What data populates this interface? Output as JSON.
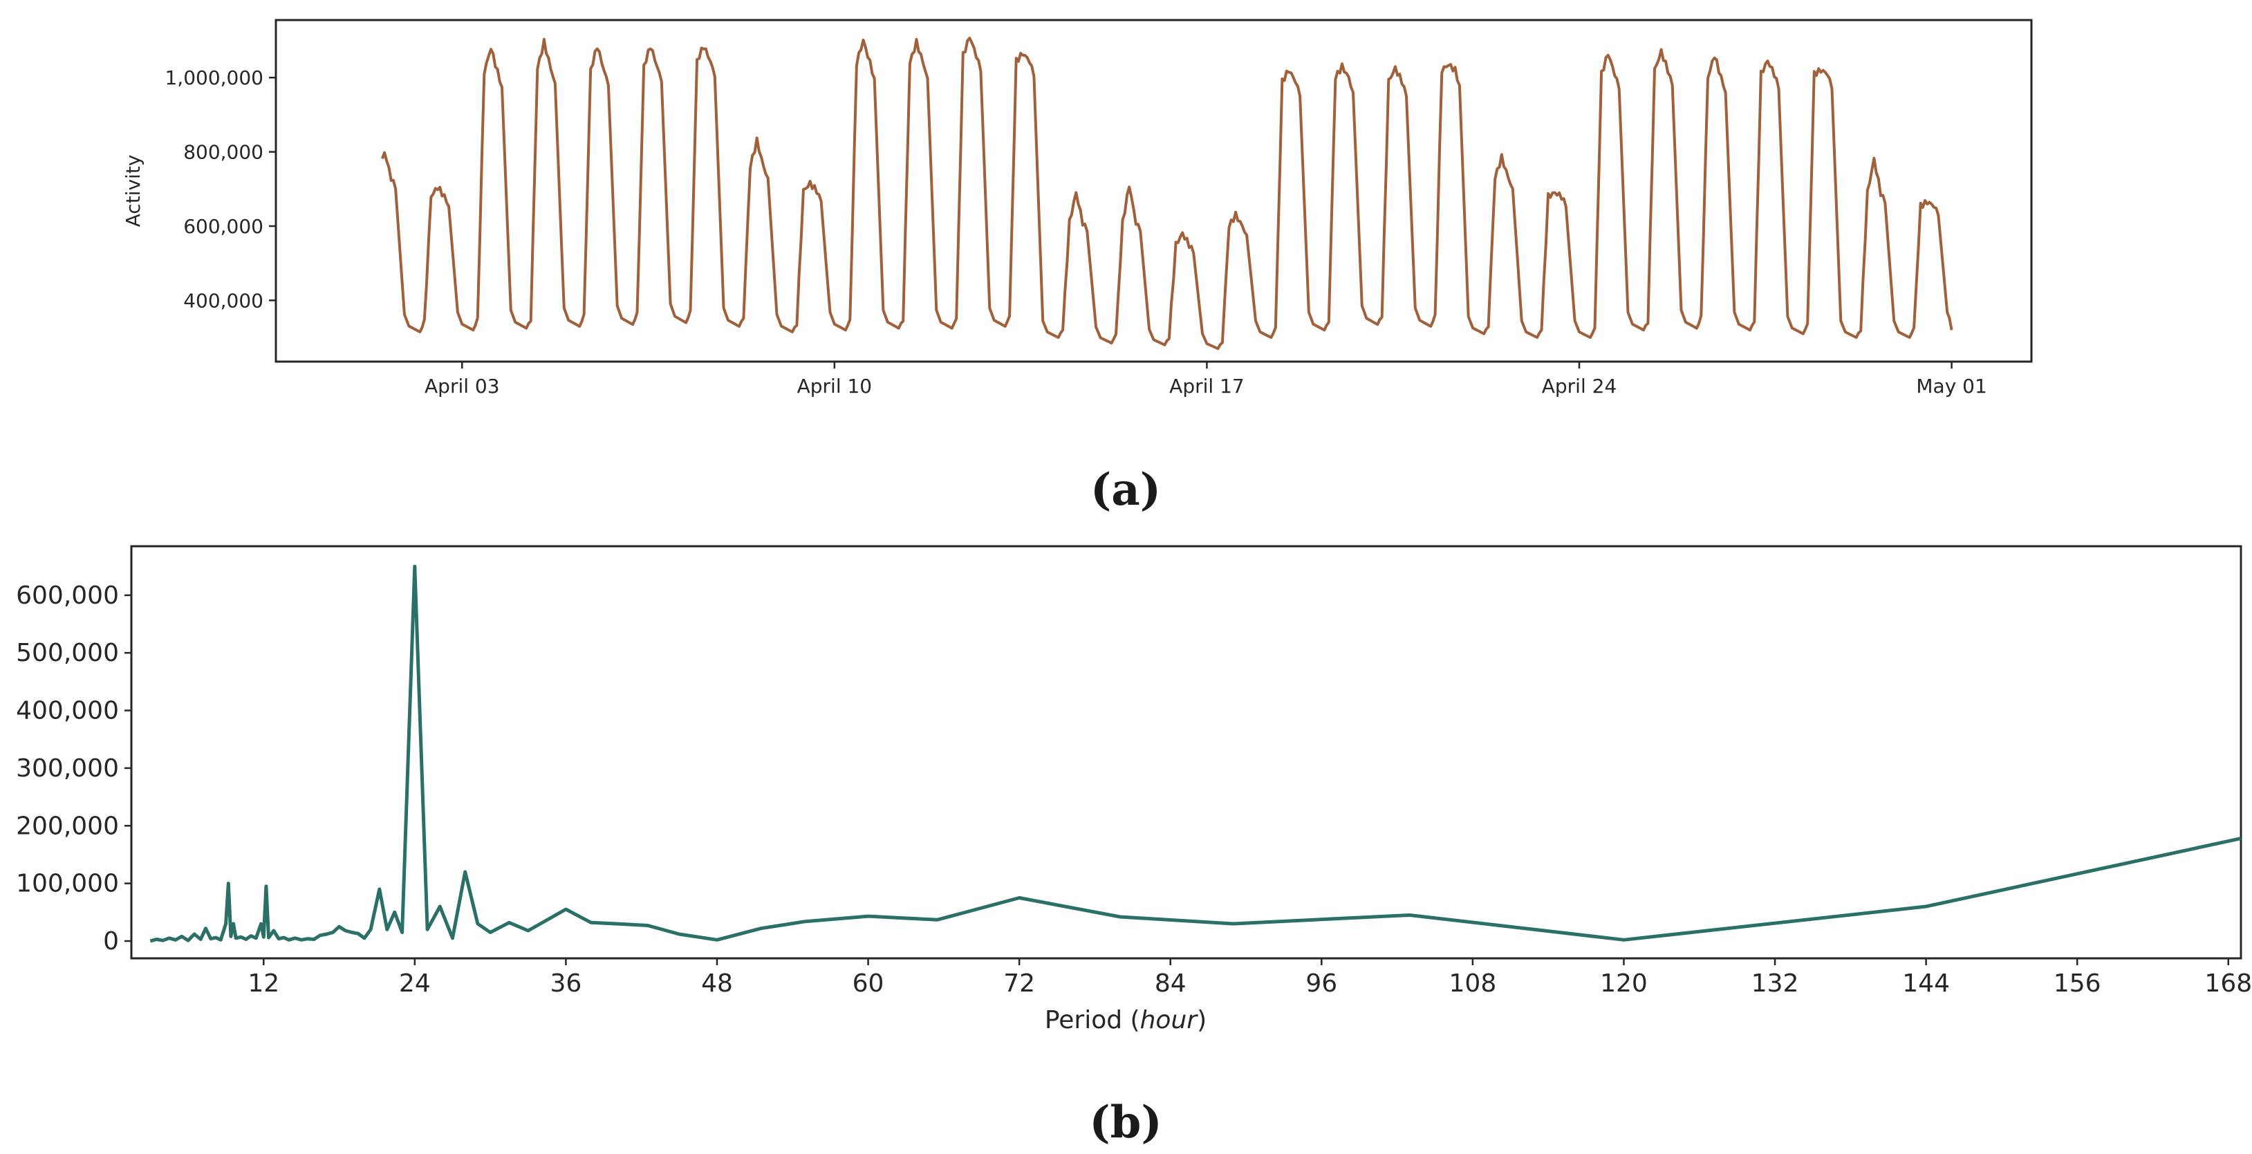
{
  "panels": {
    "a_label": "(a)",
    "b_label": "(b)"
  },
  "chart_data": [
    {
      "type": "line",
      "ylabel": "Activity",
      "xlabel": "",
      "color": "#a0603a",
      "x_start": "2018-04-01T12:00",
      "x_end": "2018-05-01T00:00",
      "xlim": [
        "2018-03-30T12:00",
        "2018-05-02T12:00"
      ],
      "ylim": [
        235000,
        1155000
      ],
      "yticks": [
        400000,
        600000,
        800000,
        1000000
      ],
      "ytick_labels": [
        "400,000",
        "600,000",
        "800,000",
        "1,000,000"
      ],
      "xticks": [
        "2018-04-03",
        "2018-04-10",
        "2018-04-17",
        "2018-04-24",
        "2018-05-01"
      ],
      "xtick_labels": [
        "April 03",
        "April 10",
        "April 17",
        "April 24",
        "May 01"
      ],
      "grid": false,
      "daily_profile": [
        {
          "day": "2018-04-01",
          "peak": 800000,
          "shoulder": 730000,
          "low": 325000
        },
        {
          "day": "2018-04-02",
          "peak": 705000,
          "shoulder": 680000,
          "low": 315000
        },
        {
          "day": "2018-04-03",
          "peak": 1080000,
          "shoulder": 1015000,
          "low": 320000
        },
        {
          "day": "2018-04-04",
          "peak": 1095000,
          "shoulder": 1025000,
          "low": 325000
        },
        {
          "day": "2018-04-05",
          "peak": 1085000,
          "shoulder": 1020000,
          "low": 330000
        },
        {
          "day": "2018-04-06",
          "peak": 1085000,
          "shoulder": 1030000,
          "low": 335000
        },
        {
          "day": "2018-04-07",
          "peak": 1085000,
          "shoulder": 1045000,
          "low": 340000
        },
        {
          "day": "2018-04-08",
          "peak": 830000,
          "shoulder": 760000,
          "low": 330000
        },
        {
          "day": "2018-04-09",
          "peak": 715000,
          "shoulder": 695000,
          "low": 315000
        },
        {
          "day": "2018-04-10",
          "peak": 1100000,
          "shoulder": 1040000,
          "low": 320000
        },
        {
          "day": "2018-04-11",
          "peak": 1095000,
          "shoulder": 1040000,
          "low": 325000
        },
        {
          "day": "2018-04-12",
          "peak": 1110000,
          "shoulder": 1060000,
          "low": 325000
        },
        {
          "day": "2018-04-13",
          "peak": 1065000,
          "shoulder": 1045000,
          "low": 330000
        },
        {
          "day": "2018-04-14",
          "peak": 690000,
          "shoulder": 610000,
          "low": 300000
        },
        {
          "day": "2018-04-15",
          "peak": 710000,
          "shoulder": 610000,
          "low": 285000
        },
        {
          "day": "2018-04-16",
          "peak": 580000,
          "shoulder": 550000,
          "low": 280000
        },
        {
          "day": "2018-04-17",
          "peak": 630000,
          "shoulder": 600000,
          "low": 270000
        },
        {
          "day": "2018-04-18",
          "peak": 1020000,
          "shoulder": 990000,
          "low": 300000
        },
        {
          "day": "2018-04-19",
          "peak": 1030000,
          "shoulder": 1000000,
          "low": 320000
        },
        {
          "day": "2018-04-20",
          "peak": 1025000,
          "shoulder": 990000,
          "low": 335000
        },
        {
          "day": "2018-04-21",
          "peak": 1035000,
          "shoulder": 1020000,
          "low": 330000
        },
        {
          "day": "2018-04-22",
          "peak": 785000,
          "shoulder": 730000,
          "low": 310000
        },
        {
          "day": "2018-04-23",
          "peak": 690000,
          "shoulder": 680000,
          "low": 300000
        },
        {
          "day": "2018-04-24",
          "peak": 1065000,
          "shoulder": 1010000,
          "low": 300000
        },
        {
          "day": "2018-04-25",
          "peak": 1070000,
          "shoulder": 1020000,
          "low": 320000
        },
        {
          "day": "2018-04-26",
          "peak": 1060000,
          "shoulder": 1000000,
          "low": 325000
        },
        {
          "day": "2018-04-27",
          "peak": 1045000,
          "shoulder": 1010000,
          "low": 320000
        },
        {
          "day": "2018-04-28",
          "peak": 1020000,
          "shoulder": 1010000,
          "low": 310000
        },
        {
          "day": "2018-04-29",
          "peak": 780000,
          "shoulder": 690000,
          "low": 300000
        },
        {
          "day": "2018-04-30",
          "peak": 665000,
          "shoulder": 655000,
          "low": 300000
        }
      ],
      "end_value": 320000
    },
    {
      "type": "line",
      "xlabel": "Period (hour)",
      "ylabel": "",
      "color": "#2a7066",
      "xlim": [
        1.5,
        169
      ],
      "ylim": [
        -30000,
        685000
      ],
      "xticks": [
        12,
        24,
        36,
        48,
        60,
        72,
        84,
        96,
        108,
        120,
        132,
        144,
        156,
        168
      ],
      "yticks": [
        0,
        100000,
        200000,
        300000,
        400000,
        500000,
        600000
      ],
      "ytick_labels": [
        "0",
        "100,000",
        "200,000",
        "300,000",
        "400,000",
        "500,000",
        "600,000"
      ],
      "grid": false,
      "points": [
        [
          3,
          0
        ],
        [
          3.5,
          3000
        ],
        [
          4,
          1000
        ],
        [
          4.5,
          5000
        ],
        [
          5,
          2000
        ],
        [
          5.5,
          8000
        ],
        [
          6,
          1000
        ],
        [
          6.5,
          12000
        ],
        [
          7,
          3000
        ],
        [
          7.4,
          22000
        ],
        [
          7.8,
          4000
        ],
        [
          8.2,
          6000
        ],
        [
          8.6,
          2000
        ],
        [
          9.0,
          30000
        ],
        [
          9.2,
          100000
        ],
        [
          9.4,
          8000
        ],
        [
          9.6,
          30000
        ],
        [
          9.8,
          5000
        ],
        [
          10.2,
          7000
        ],
        [
          10.6,
          3000
        ],
        [
          11.0,
          9000
        ],
        [
          11.4,
          5000
        ],
        [
          11.8,
          30000
        ],
        [
          12.0,
          7000
        ],
        [
          12.2,
          95000
        ],
        [
          12.4,
          6000
        ],
        [
          12.8,
          18000
        ],
        [
          13.2,
          4000
        ],
        [
          13.6,
          6000
        ],
        [
          14.0,
          2000
        ],
        [
          14.5,
          5000
        ],
        [
          15,
          2000
        ],
        [
          15.5,
          4000
        ],
        [
          16,
          3000
        ],
        [
          16.5,
          10000
        ],
        [
          17,
          12000
        ],
        [
          17.5,
          15000
        ],
        [
          18,
          25000
        ],
        [
          18.5,
          18000
        ],
        [
          19,
          15000
        ],
        [
          19.5,
          13000
        ],
        [
          20,
          5000
        ],
        [
          20.5,
          20000
        ],
        [
          21.2,
          90000
        ],
        [
          21.8,
          20000
        ],
        [
          22.4,
          50000
        ],
        [
          23.0,
          15000
        ],
        [
          24,
          650000
        ],
        [
          25,
          20000
        ],
        [
          26,
          60000
        ],
        [
          27,
          5000
        ],
        [
          28,
          120000
        ],
        [
          29,
          30000
        ],
        [
          30,
          15000
        ],
        [
          31.5,
          32000
        ],
        [
          33,
          18000
        ],
        [
          36,
          55000
        ],
        [
          38,
          32000
        ],
        [
          40,
          30000
        ],
        [
          42.5,
          27000
        ],
        [
          45,
          12000
        ],
        [
          48,
          2000
        ],
        [
          51.5,
          22000
        ],
        [
          55,
          34000
        ],
        [
          60,
          43000
        ],
        [
          65.5,
          37000
        ],
        [
          72,
          75000
        ],
        [
          80,
          42000
        ],
        [
          89,
          30000
        ],
        [
          103,
          45000
        ],
        [
          120,
          2000
        ],
        [
          144,
          60000
        ],
        [
          169,
          178000
        ]
      ]
    }
  ]
}
